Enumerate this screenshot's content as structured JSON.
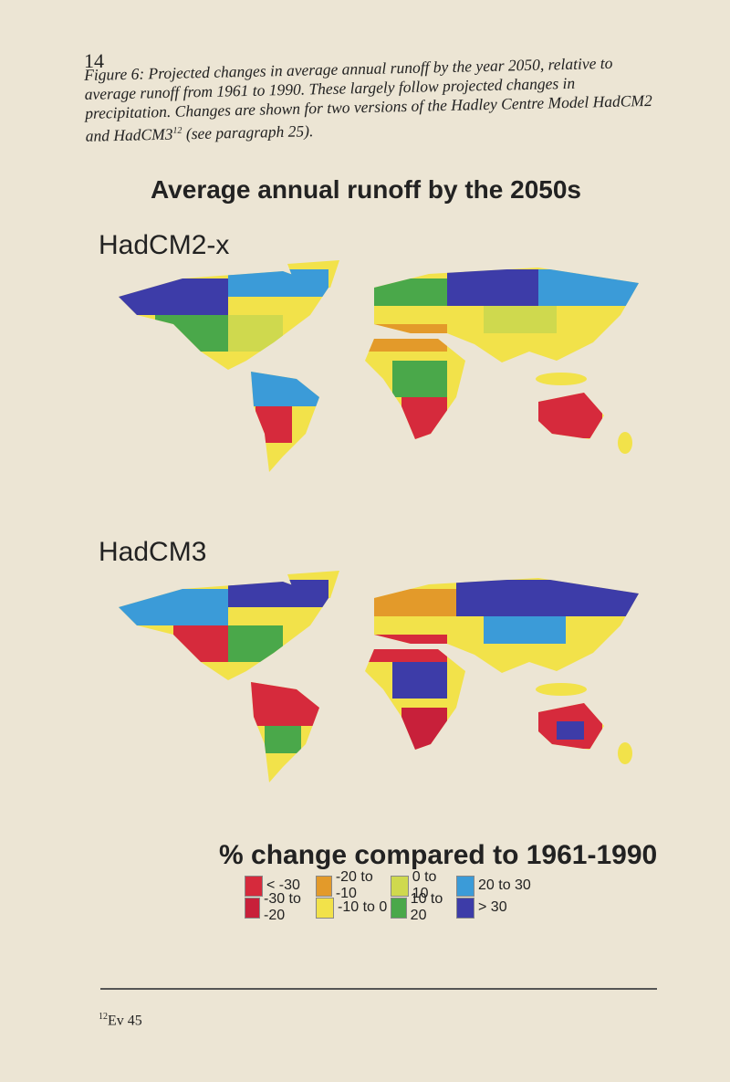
{
  "page_number": "14",
  "caption": {
    "text": "Figure 6: Projected changes in average annual runoff by the year 2050, relative to average runoff from 1961 to 1990. These largely follow projected changes in precipitation. Changes are shown for two versions of the Hadley Centre Model HadCM2 and HadCM3",
    "superscript": "12",
    "tail": " (see paragraph 25)."
  },
  "title": "Average annual runoff by the 2050s",
  "maps": [
    {
      "label": "HadCM2-x"
    },
    {
      "label": "HadCM3"
    }
  ],
  "legend": {
    "title": "% change compared to 1961-1990",
    "items": [
      {
        "label": "< -30",
        "color": "#d62a3c"
      },
      {
        "label": "-30 to -20",
        "color": "#c8203a"
      },
      {
        "label": "-20 to -10",
        "color": "#e39a2a"
      },
      {
        "label": "-10 to 0",
        "color": "#f2e24a"
      },
      {
        "label": "0 to 10",
        "color": "#cfd94e"
      },
      {
        "label": "10 to 20",
        "color": "#4aa84a"
      },
      {
        "label": "20 to 30",
        "color": "#3b9bd8"
      },
      {
        "label": "> 30",
        "color": "#3d3ca8"
      }
    ]
  },
  "footnote": {
    "superscript": "12",
    "text": "Ev 45"
  }
}
